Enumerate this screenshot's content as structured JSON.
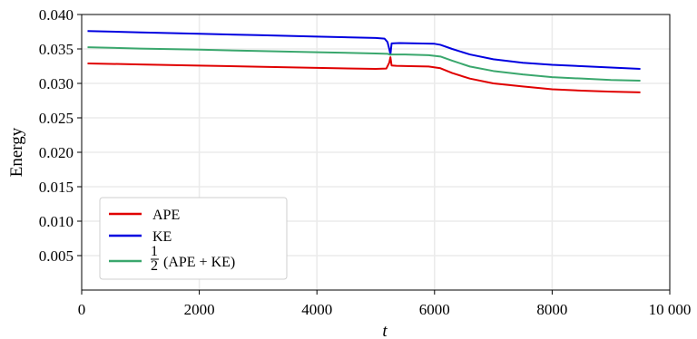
{
  "chart_data": {
    "type": "line",
    "xlabel": "t",
    "ylabel": "Energy",
    "xlim": [
      0,
      10000
    ],
    "ylim": [
      0,
      0.04
    ],
    "x_ticks": [
      0,
      2000,
      4000,
      6000,
      8000,
      10000
    ],
    "x_tick_labels": [
      "0",
      "2000",
      "4000",
      "6000",
      "8000",
      "10 000"
    ],
    "y_ticks": [
      0.005,
      0.01,
      0.015,
      0.02,
      0.025,
      0.03,
      0.035,
      0.04
    ],
    "y_tick_labels": [
      "0.005",
      "0.010",
      "0.015",
      "0.020",
      "0.025",
      "0.030",
      "0.035",
      "0.040"
    ],
    "grid": true,
    "legend_position": "bottom-left",
    "legend": {
      "half_num": "1",
      "half_den": "2",
      "half_rest": "(APE + KE)"
    },
    "series": [
      {
        "name": "APE",
        "color": "#e00000",
        "points": [
          [
            100,
            0.0329
          ],
          [
            1000,
            0.03275
          ],
          [
            2000,
            0.03258
          ],
          [
            3000,
            0.03242
          ],
          [
            4000,
            0.03225
          ],
          [
            5000,
            0.0321
          ],
          [
            5180,
            0.03215
          ],
          [
            5230,
            0.033
          ],
          [
            5250,
            0.0338
          ],
          [
            5270,
            0.0326
          ],
          [
            5350,
            0.03255
          ],
          [
            5600,
            0.0325
          ],
          [
            5900,
            0.03245
          ],
          [
            6100,
            0.0322
          ],
          [
            6300,
            0.0315
          ],
          [
            6600,
            0.0307
          ],
          [
            7000,
            0.03
          ],
          [
            7500,
            0.02955
          ],
          [
            8000,
            0.02915
          ],
          [
            8500,
            0.02895
          ],
          [
            9000,
            0.0288
          ],
          [
            9500,
            0.0287
          ]
        ]
      },
      {
        "name": "KE",
        "color": "#0000e0",
        "points": [
          [
            100,
            0.0376
          ],
          [
            1000,
            0.0374
          ],
          [
            2000,
            0.0372
          ],
          [
            3000,
            0.037
          ],
          [
            4000,
            0.0368
          ],
          [
            5000,
            0.0366
          ],
          [
            5150,
            0.0365
          ],
          [
            5200,
            0.036
          ],
          [
            5230,
            0.035
          ],
          [
            5250,
            0.0342
          ],
          [
            5270,
            0.0358
          ],
          [
            5400,
            0.03585
          ],
          [
            5700,
            0.0358
          ],
          [
            6000,
            0.03575
          ],
          [
            6100,
            0.0356
          ],
          [
            6300,
            0.035
          ],
          [
            6600,
            0.0342
          ],
          [
            7000,
            0.0335
          ],
          [
            7500,
            0.033
          ],
          [
            8000,
            0.0327
          ],
          [
            8500,
            0.0325
          ],
          [
            9000,
            0.0323
          ],
          [
            9500,
            0.0321
          ]
        ]
      },
      {
        "name": "½ (APE + KE)",
        "color": "#3aa76d",
        "points": [
          [
            100,
            0.03525
          ],
          [
            1000,
            0.03505
          ],
          [
            2000,
            0.0349
          ],
          [
            3000,
            0.0347
          ],
          [
            4000,
            0.03453
          ],
          [
            5000,
            0.03435
          ],
          [
            5200,
            0.0343
          ],
          [
            5250,
            0.03415
          ],
          [
            5270,
            0.0342
          ],
          [
            5500,
            0.0342
          ],
          [
            5900,
            0.0341
          ],
          [
            6100,
            0.0339
          ],
          [
            6300,
            0.0333
          ],
          [
            6600,
            0.03245
          ],
          [
            7000,
            0.0318
          ],
          [
            7500,
            0.0313
          ],
          [
            8000,
            0.0309
          ],
          [
            8500,
            0.0307
          ],
          [
            9000,
            0.0305
          ],
          [
            9500,
            0.0304
          ]
        ]
      }
    ]
  }
}
